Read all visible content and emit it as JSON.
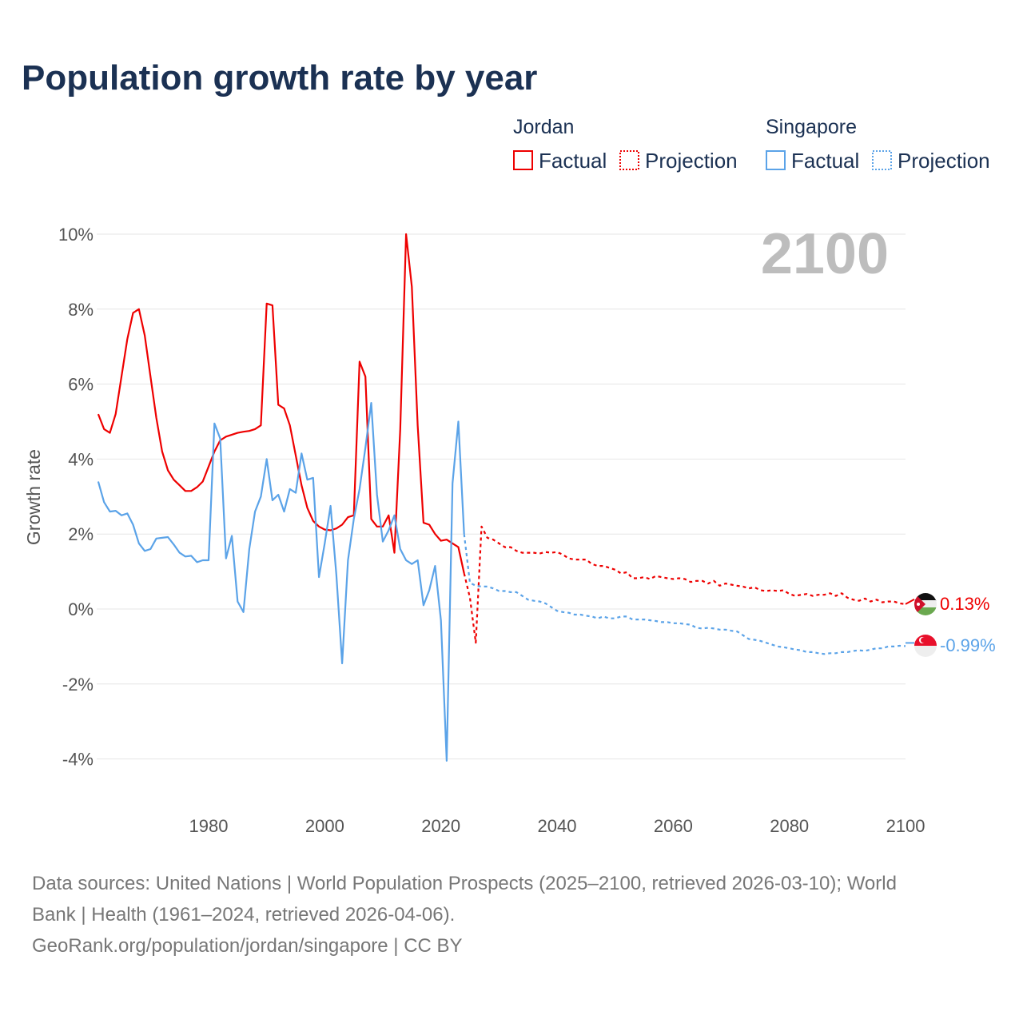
{
  "title": "Population growth rate by year",
  "legend": {
    "groups": [
      {
        "name": "Jordan",
        "color": "#ee0000",
        "factual": "Factual",
        "projection": "Projection"
      },
      {
        "name": "Singapore",
        "color": "#5ba3e8",
        "factual": "Factual",
        "projection": "Projection"
      }
    ]
  },
  "year_badge": "2100",
  "end_labels": {
    "jordan": "0.13%",
    "singapore": "-0.99%"
  },
  "footer": {
    "line1": "Data sources: United Nations | World Population Prospects (2025–2100, retrieved 2026-03-10); World",
    "line2": "Bank | Health (1961–2024, retrieved 2026-04-06).",
    "line3": "GeoRank.org/population/jordan/singapore | CC BY"
  },
  "chart_data": {
    "type": "line",
    "title": "Population growth rate by year",
    "xlabel": "",
    "ylabel": "Growth rate",
    "xlim": [
      1961,
      2100
    ],
    "ylim": [
      -4.5,
      10.5
    ],
    "x_ticks": [
      1980,
      2000,
      2020,
      2040,
      2060,
      2080,
      2100
    ],
    "y_ticks": [
      -4,
      -2,
      0,
      2,
      4,
      6,
      8,
      10
    ],
    "y_tick_labels": [
      "-4%",
      "-2%",
      "0%",
      "2%",
      "4%",
      "6%",
      "8%",
      "10%"
    ],
    "series": [
      {
        "name": "Jordan Factual",
        "color": "#ee0000",
        "style": "solid",
        "start_year": 1961,
        "values": [
          5.2,
          4.8,
          4.7,
          5.2,
          6.2,
          7.2,
          7.9,
          8.0,
          7.3,
          6.2,
          5.1,
          4.2,
          3.7,
          3.45,
          3.3,
          3.15,
          3.15,
          3.25,
          3.4,
          3.8,
          4.2,
          4.5,
          4.6,
          4.65,
          4.7,
          4.73,
          4.75,
          4.8,
          4.9,
          8.15,
          8.1,
          5.45,
          5.35,
          4.9,
          4.1,
          3.3,
          2.7,
          2.35,
          2.2,
          2.12,
          2.1,
          2.15,
          2.25,
          2.45,
          2.5,
          6.6,
          6.2,
          2.4,
          2.2,
          2.2,
          2.5,
          1.5,
          4.8,
          10.0,
          8.6,
          4.9,
          2.3,
          2.25,
          2.0,
          1.82,
          1.85,
          1.75,
          1.65,
          0.95
        ]
      },
      {
        "name": "Jordan Projection",
        "color": "#ee0000",
        "style": "dotted",
        "start_year": 2024,
        "values": [
          0.95,
          0.3,
          -0.9,
          2.2,
          1.9,
          1.85,
          1.75,
          1.65,
          1.65,
          1.55,
          1.5,
          1.5,
          1.5,
          1.48,
          1.52,
          1.5,
          1.52,
          1.45,
          1.35,
          1.32,
          1.32,
          1.32,
          1.2,
          1.15,
          1.15,
          1.1,
          1.05,
          0.95,
          0.98,
          0.82,
          0.82,
          0.85,
          0.8,
          0.88,
          0.85,
          0.82,
          0.8,
          0.82,
          0.8,
          0.72,
          0.75,
          0.75,
          0.68,
          0.75,
          0.62,
          0.68,
          0.65,
          0.62,
          0.6,
          0.55,
          0.58,
          0.5,
          0.48,
          0.5,
          0.48,
          0.5,
          0.4,
          0.35,
          0.38,
          0.4,
          0.35,
          0.38,
          0.38,
          0.42,
          0.35,
          0.42,
          0.3,
          0.25,
          0.22,
          0.28,
          0.2,
          0.25,
          0.18,
          0.2,
          0.2,
          0.15,
          0.13
        ]
      },
      {
        "name": "Singapore Factual",
        "color": "#5ba3e8",
        "style": "solid",
        "start_year": 1961,
        "values": [
          3.4,
          2.85,
          2.6,
          2.62,
          2.5,
          2.55,
          2.25,
          1.75,
          1.55,
          1.6,
          1.88,
          1.9,
          1.92,
          1.72,
          1.5,
          1.4,
          1.42,
          1.25,
          1.3,
          1.3,
          4.95,
          4.55,
          1.35,
          1.95,
          0.2,
          -0.08,
          1.6,
          2.6,
          3.0,
          4.0,
          2.9,
          3.05,
          2.6,
          3.2,
          3.1,
          4.15,
          3.45,
          3.5,
          0.85,
          1.75,
          2.75,
          0.9,
          -1.45,
          1.3,
          2.4,
          3.2,
          4.3,
          5.5,
          3.05,
          1.8,
          2.1,
          2.5,
          1.6,
          1.3,
          1.2,
          1.3,
          0.1,
          0.5,
          1.15,
          -0.3,
          -4.05,
          3.35,
          5.0,
          2.0
        ]
      },
      {
        "name": "Singapore Projection",
        "color": "#5ba3e8",
        "style": "dotted",
        "start_year": 2024,
        "values": [
          2.0,
          0.7,
          0.62,
          0.6,
          0.6,
          0.55,
          0.48,
          0.48,
          0.45,
          0.45,
          0.35,
          0.25,
          0.22,
          0.2,
          0.15,
          0.05,
          -0.05,
          -0.08,
          -0.1,
          -0.15,
          -0.15,
          -0.18,
          -0.2,
          -0.25,
          -0.2,
          -0.25,
          -0.25,
          -0.2,
          -0.2,
          -0.28,
          -0.28,
          -0.28,
          -0.3,
          -0.32,
          -0.35,
          -0.35,
          -0.38,
          -0.38,
          -0.4,
          -0.42,
          -0.5,
          -0.52,
          -0.5,
          -0.52,
          -0.55,
          -0.55,
          -0.58,
          -0.6,
          -0.7,
          -0.8,
          -0.82,
          -0.85,
          -0.9,
          -0.95,
          -1.0,
          -1.02,
          -1.05,
          -1.08,
          -1.1,
          -1.15,
          -1.15,
          -1.18,
          -1.2,
          -1.18,
          -1.18,
          -1.15,
          -1.15,
          -1.12,
          -1.1,
          -1.12,
          -1.08,
          -1.05,
          -1.05,
          -1.0,
          -1.0,
          -0.98,
          -0.99
        ]
      }
    ]
  }
}
